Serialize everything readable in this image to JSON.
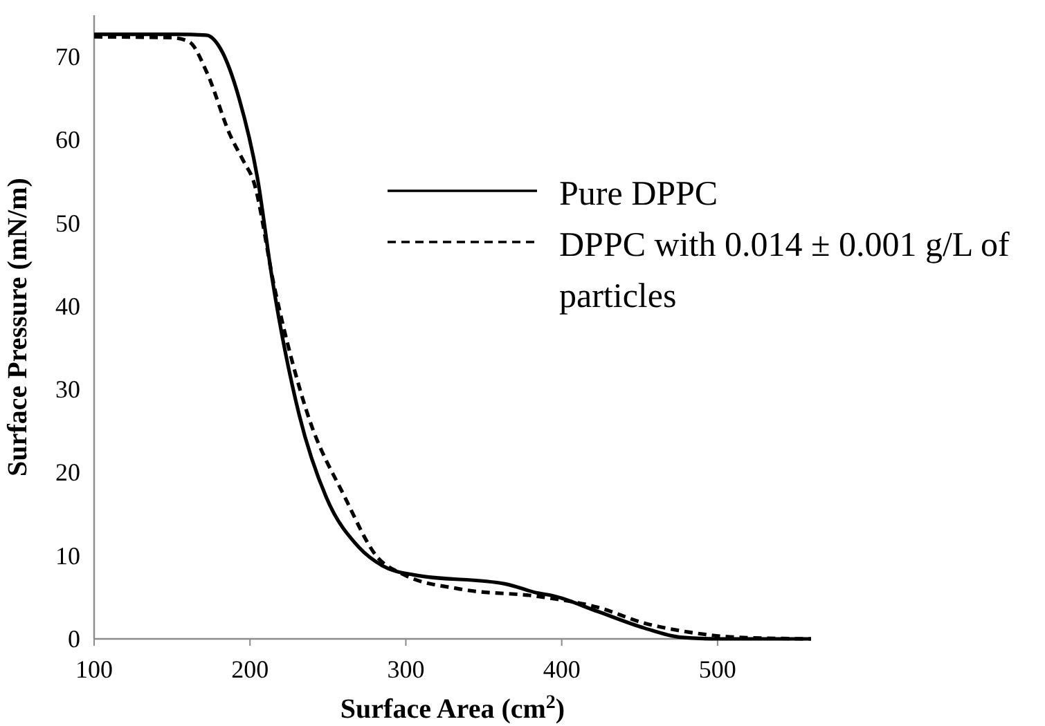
{
  "chart_data": {
    "type": "line",
    "xlabel": "Surface Area (cm$^{2}$)",
    "ylabel": "Surface Pressure (mN/m)",
    "xlim": [
      100,
      560
    ],
    "ylim": [
      0,
      75
    ],
    "xticks": [
      100,
      200,
      300,
      400,
      500
    ],
    "yticks": [
      0,
      10,
      20,
      30,
      40,
      50,
      60,
      70
    ],
    "grid": false,
    "legend": "right",
    "marker": "none",
    "series": [
      {
        "name": "Pure DPPC",
        "color": "#000000",
        "line_style": "solid",
        "x": [
          100,
          150,
          172,
          181,
          193,
          205,
          214,
          231.5,
          249,
          270,
          285,
          305,
          364,
          385,
          394,
          423,
          453,
          476,
          500,
          560
        ],
        "values": [
          72.7,
          72.7,
          72.6,
          71,
          65,
          55.2,
          43.6,
          27,
          17,
          11,
          8.8,
          7.7,
          6.6,
          5.5,
          5.2,
          3.3,
          1.3,
          0.2,
          0,
          0
        ]
      },
      {
        "name": "DPPC with 0.014 ± 0.001 g/L of particles",
        "color": "#000000",
        "line_style": "dashed",
        "x": [
          100,
          150,
          161,
          172.6,
          187,
          196,
          202,
          216,
          237,
          261,
          281,
          299,
          334.5,
          385,
          423,
          453,
          482,
          512,
          560
        ],
        "values": [
          72.4,
          72.3,
          71.8,
          68,
          60.7,
          57.4,
          55.2,
          42,
          27,
          17,
          10,
          7.7,
          6,
          5.1,
          3.8,
          1.9,
          0.8,
          0.2,
          0
        ]
      }
    ]
  }
}
